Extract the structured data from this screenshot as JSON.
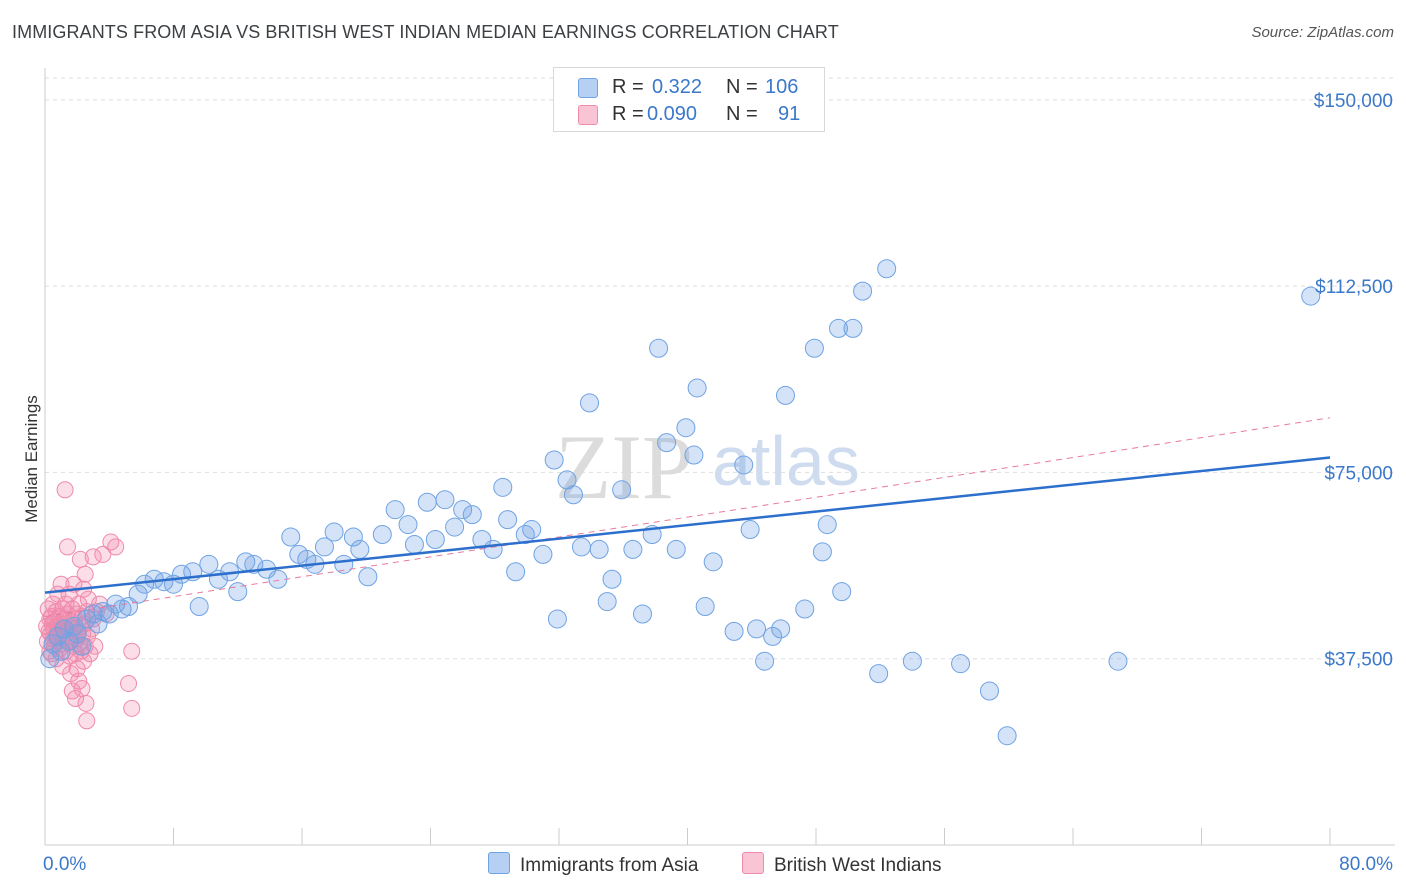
{
  "title": "IMMIGRANTS FROM ASIA VS BRITISH WEST INDIAN MEDIAN EARNINGS CORRELATION CHART",
  "source": "Source: ZipAtlas.com",
  "watermark": {
    "zip": "ZIP",
    "atlas": "atlas"
  },
  "colors": {
    "blue": "#6fa3e3",
    "blue_line": "#2d6fcc",
    "pink": "#f08aab",
    "pink_line": "#e87a9b",
    "tick": "#3a78c9"
  },
  "legend": {
    "row1": {
      "r_label": "R =",
      "r_value": "0.322",
      "n_label": "N =",
      "n_value": "106"
    },
    "row2": {
      "r_label": "R =",
      "r_value": "0.090",
      "n_label": "N =",
      "n_value": "91"
    }
  },
  "bottom_legend": {
    "series1": "Immigrants from Asia",
    "series2": "British West Indians"
  },
  "chart_data": {
    "type": "scatter",
    "xlabel": "",
    "ylabel": "Median Earnings",
    "xlim": [
      0,
      80
    ],
    "ylim": [
      0,
      155000
    ],
    "x_tick_labels": {
      "min": "0.0%",
      "max": "80.0%"
    },
    "y_ticks": [
      {
        "value": 37500,
        "label": "$37,500"
      },
      {
        "value": 75000,
        "label": "$75,000"
      },
      {
        "value": 112500,
        "label": "$112,500"
      },
      {
        "value": 150000,
        "label": "$150,000"
      }
    ],
    "grid": true,
    "series": [
      {
        "name": "Immigrants from Asia",
        "color": "#6fa3e3",
        "trend": {
          "x": [
            0,
            80
          ],
          "y": [
            50800,
            78000
          ],
          "style": "solid"
        },
        "points": [
          [
            0.3,
            37500
          ],
          [
            0.5,
            40500
          ],
          [
            0.8,
            42000
          ],
          [
            1.0,
            39000
          ],
          [
            1.2,
            43500
          ],
          [
            1.5,
            41000
          ],
          [
            1.8,
            44000
          ],
          [
            2.0,
            42500
          ],
          [
            2.3,
            40000
          ],
          [
            2.6,
            45500
          ],
          [
            3.0,
            46500
          ],
          [
            3.3,
            44500
          ],
          [
            3.6,
            47000
          ],
          [
            4.0,
            46500
          ],
          [
            4.4,
            48500
          ],
          [
            4.8,
            47500
          ],
          [
            5.2,
            48000
          ],
          [
            5.8,
            50500
          ],
          [
            6.2,
            52500
          ],
          [
            6.8,
            53500
          ],
          [
            7.4,
            53000
          ],
          [
            8.0,
            52500
          ],
          [
            8.5,
            54500
          ],
          [
            9.2,
            55000
          ],
          [
            9.6,
            48000
          ],
          [
            10.2,
            56500
          ],
          [
            10.8,
            53500
          ],
          [
            11.5,
            55000
          ],
          [
            12.0,
            51000
          ],
          [
            12.5,
            57000
          ],
          [
            13.0,
            56500
          ],
          [
            13.8,
            55500
          ],
          [
            14.5,
            53500
          ],
          [
            15.3,
            62000
          ],
          [
            15.8,
            58500
          ],
          [
            16.3,
            57500
          ],
          [
            16.8,
            56500
          ],
          [
            17.4,
            60000
          ],
          [
            18.0,
            63000
          ],
          [
            18.6,
            56500
          ],
          [
            19.2,
            62000
          ],
          [
            19.6,
            59500
          ],
          [
            20.1,
            54000
          ],
          [
            21.0,
            62500
          ],
          [
            21.8,
            67500
          ],
          [
            22.6,
            64500
          ],
          [
            23.0,
            60500
          ],
          [
            23.8,
            69000
          ],
          [
            24.3,
            61500
          ],
          [
            24.9,
            69500
          ],
          [
            25.5,
            64000
          ],
          [
            26.0,
            67500
          ],
          [
            26.6,
            66500
          ],
          [
            27.2,
            61500
          ],
          [
            27.9,
            59500
          ],
          [
            28.5,
            72000
          ],
          [
            28.8,
            65500
          ],
          [
            29.3,
            55000
          ],
          [
            29.9,
            62500
          ],
          [
            30.3,
            63500
          ],
          [
            31.0,
            58500
          ],
          [
            31.7,
            77500
          ],
          [
            31.9,
            45500
          ],
          [
            32.5,
            73500
          ],
          [
            32.9,
            70500
          ],
          [
            33.4,
            60000
          ],
          [
            33.9,
            89000
          ],
          [
            34.5,
            59500
          ],
          [
            35.0,
            49000
          ],
          [
            35.3,
            53500
          ],
          [
            35.9,
            71500
          ],
          [
            36.6,
            59500
          ],
          [
            37.2,
            46500
          ],
          [
            37.8,
            62500
          ],
          [
            38.2,
            100000
          ],
          [
            38.7,
            81000
          ],
          [
            39.3,
            59500
          ],
          [
            39.9,
            84000
          ],
          [
            40.4,
            78500
          ],
          [
            40.6,
            92000
          ],
          [
            41.1,
            48000
          ],
          [
            41.6,
            57000
          ],
          [
            42.9,
            43000
          ],
          [
            43.5,
            76500
          ],
          [
            43.9,
            63500
          ],
          [
            44.3,
            43500
          ],
          [
            44.8,
            37000
          ],
          [
            45.3,
            42000
          ],
          [
            45.8,
            43500
          ],
          [
            46.1,
            90500
          ],
          [
            47.3,
            47500
          ],
          [
            47.9,
            100000
          ],
          [
            48.4,
            59000
          ],
          [
            48.7,
            64500
          ],
          [
            49.4,
            104000
          ],
          [
            49.6,
            51000
          ],
          [
            50.3,
            104000
          ],
          [
            50.9,
            111500
          ],
          [
            51.9,
            34500
          ],
          [
            52.4,
            116000
          ],
          [
            54.0,
            37000
          ],
          [
            57.0,
            36500
          ],
          [
            58.8,
            31000
          ],
          [
            59.9,
            22000
          ],
          [
            66.8,
            37000
          ],
          [
            78.8,
            110500
          ]
        ]
      },
      {
        "name": "British West Indians",
        "color": "#f08aab",
        "trend": {
          "x": [
            0,
            80
          ],
          "y": [
            46000,
            86000
          ],
          "style": "dashed"
        },
        "points": [
          [
            0.1,
            44000
          ],
          [
            0.15,
            41000
          ],
          [
            0.2,
            47500
          ],
          [
            0.25,
            43000
          ],
          [
            0.3,
            39000
          ],
          [
            0.3,
            45500
          ],
          [
            0.35,
            42500
          ],
          [
            0.4,
            46000
          ],
          [
            0.4,
            38500
          ],
          [
            0.45,
            44500
          ],
          [
            0.5,
            41500
          ],
          [
            0.5,
            48500
          ],
          [
            0.55,
            43500
          ],
          [
            0.6,
            40000
          ],
          [
            0.6,
            45000
          ],
          [
            0.65,
            42000
          ],
          [
            0.7,
            47000
          ],
          [
            0.7,
            37500
          ],
          [
            0.75,
            44000
          ],
          [
            0.8,
            41000
          ],
          [
            0.8,
            50500
          ],
          [
            0.85,
            43000
          ],
          [
            0.9,
            46000
          ],
          [
            0.9,
            39500
          ],
          [
            0.95,
            42500
          ],
          [
            1.0,
            44500
          ],
          [
            1.0,
            52500
          ],
          [
            1.05,
            40500
          ],
          [
            1.1,
            47500
          ],
          [
            1.1,
            36000
          ],
          [
            1.15,
            43500
          ],
          [
            1.2,
            45500
          ],
          [
            1.2,
            41500
          ],
          [
            1.25,
            71500
          ],
          [
            1.3,
            48500
          ],
          [
            1.3,
            39000
          ],
          [
            1.35,
            42500
          ],
          [
            1.4,
            46500
          ],
          [
            1.4,
            60000
          ],
          [
            1.45,
            44000
          ],
          [
            1.5,
            41000
          ],
          [
            1.5,
            50500
          ],
          [
            1.55,
            38000
          ],
          [
            1.6,
            45000
          ],
          [
            1.6,
            34500
          ],
          [
            1.65,
            42000
          ],
          [
            1.7,
            47500
          ],
          [
            1.7,
            31000
          ],
          [
            1.75,
            43500
          ],
          [
            1.8,
            40000
          ],
          [
            1.8,
            52500
          ],
          [
            1.85,
            45500
          ],
          [
            1.9,
            38500
          ],
          [
            1.9,
            29500
          ],
          [
            1.95,
            41500
          ],
          [
            2.0,
            46500
          ],
          [
            2.0,
            35500
          ],
          [
            2.05,
            43000
          ],
          [
            2.1,
            48500
          ],
          [
            2.1,
            33000
          ],
          [
            2.15,
            40500
          ],
          [
            2.2,
            44000
          ],
          [
            2.2,
            57500
          ],
          [
            2.25,
            39000
          ],
          [
            2.3,
            46000
          ],
          [
            2.3,
            31500
          ],
          [
            2.35,
            42500
          ],
          [
            2.4,
            51500
          ],
          [
            2.4,
            37000
          ],
          [
            2.45,
            44500
          ],
          [
            2.5,
            40000
          ],
          [
            2.5,
            54500
          ],
          [
            2.55,
            28500
          ],
          [
            2.6,
            47000
          ],
          [
            2.6,
            25000
          ],
          [
            2.65,
            42000
          ],
          [
            2.7,
            49500
          ],
          [
            2.8,
            38500
          ],
          [
            2.9,
            43500
          ],
          [
            3.0,
            45500
          ],
          [
            3.0,
            58000
          ],
          [
            3.1,
            40000
          ],
          [
            3.2,
            47000
          ],
          [
            3.4,
            48500
          ],
          [
            3.6,
            58500
          ],
          [
            3.8,
            46500
          ],
          [
            4.1,
            61000
          ],
          [
            4.4,
            60000
          ],
          [
            5.2,
            32500
          ],
          [
            5.4,
            39000
          ],
          [
            5.4,
            27500
          ]
        ]
      }
    ]
  }
}
